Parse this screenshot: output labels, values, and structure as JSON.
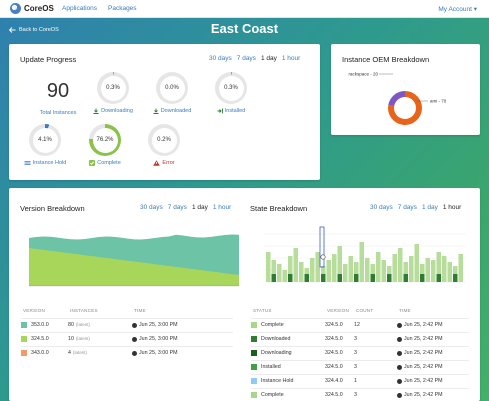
{
  "header": {
    "logo": "CoreOS",
    "nav": [
      "Applications",
      "Packages"
    ],
    "account": "My Account ▾"
  },
  "page": {
    "back": "Back to CoreOS",
    "title": "East Coast"
  },
  "update_progress": {
    "title": "Update Progress",
    "ranges": [
      "30 days",
      "7 days",
      "1 day",
      "1 hour"
    ],
    "active_range": "1 day",
    "total": "90",
    "total_label": "Total Instances",
    "stats": [
      {
        "value": "0.3%",
        "label": "Downloading",
        "pct": 0.3,
        "color": "#2e7d32"
      },
      {
        "value": "0.0%",
        "label": "Downloaded",
        "pct": 0.0,
        "color": "#2e7d32"
      },
      {
        "value": "0.3%",
        "label": "Installed",
        "pct": 0.3,
        "color": "#2e7d32"
      },
      {
        "value": "4.1%",
        "label": "Instance Hold",
        "pct": 4.1,
        "color": "#3a7bbf"
      },
      {
        "value": "76.2%",
        "label": "Complete",
        "pct": 76.2,
        "color": "#8bc34a"
      },
      {
        "value": "0.2%",
        "label": "Error",
        "pct": 0.2,
        "color": "#c0392b"
      }
    ]
  },
  "oem": {
    "title": "Instance OEM Breakdown",
    "slices": [
      {
        "label": "rackspace - 20",
        "value": 20,
        "color": "#7e57c2"
      },
      {
        "label": "ami - 70",
        "value": 70,
        "color": "#e8641b"
      }
    ]
  },
  "version_breakdown": {
    "title": "Version Breakdown",
    "ranges": [
      "30 days",
      "7 days",
      "1 day",
      "1 hour"
    ],
    "active_range": "1 day",
    "table_headers": [
      "VERSION",
      "INSTANCES",
      "TIME"
    ],
    "rows": [
      {
        "version": "353.0.0",
        "instances": "80",
        "note": "(latest)",
        "time": "Jun 25, 3:00 PM",
        "color": "#6cc3a5"
      },
      {
        "version": "324.5.0",
        "instances": "10",
        "note": "(latest)",
        "time": "Jun 25, 3:00 PM",
        "color": "#a8d65a"
      },
      {
        "version": "343.0.0",
        "instances": "4",
        "note": "(latest)",
        "time": "Jun 25, 3:00 PM",
        "color": "#f19a6a"
      }
    ]
  },
  "state_breakdown": {
    "title": "State Breakdown",
    "ranges": [
      "30 days",
      "7 days",
      "1 day",
      "1 hour"
    ],
    "active_range": "1 hour",
    "table_headers": [
      "STATUS",
      "VERSION",
      "COUNT",
      "TIME"
    ],
    "rows": [
      {
        "status": "Complete",
        "version": "324.5.0",
        "count": "12",
        "time": "Jun 25, 2:42 PM",
        "color": "#a8d68a"
      },
      {
        "status": "Downloaded",
        "version": "324.5.0",
        "count": "3",
        "time": "Jun 25, 2:42 PM",
        "color": "#2e7d32"
      },
      {
        "status": "Downloading",
        "version": "324.5.0",
        "count": "3",
        "time": "Jun 25, 2:42 PM",
        "color": "#1b5e20"
      },
      {
        "status": "Installed",
        "version": "324.5.0",
        "count": "3",
        "time": "Jun 25, 2:42 PM",
        "color": "#43a047"
      },
      {
        "status": "Instance Hold",
        "version": "324.4.0",
        "count": "1",
        "time": "Jun 25, 2:42 PM",
        "color": "#90caf9"
      },
      {
        "status": "Complete",
        "version": "324.5.0",
        "count": "3",
        "time": "Jun 25, 2:42 PM",
        "color": "#a8d68a"
      }
    ]
  }
}
